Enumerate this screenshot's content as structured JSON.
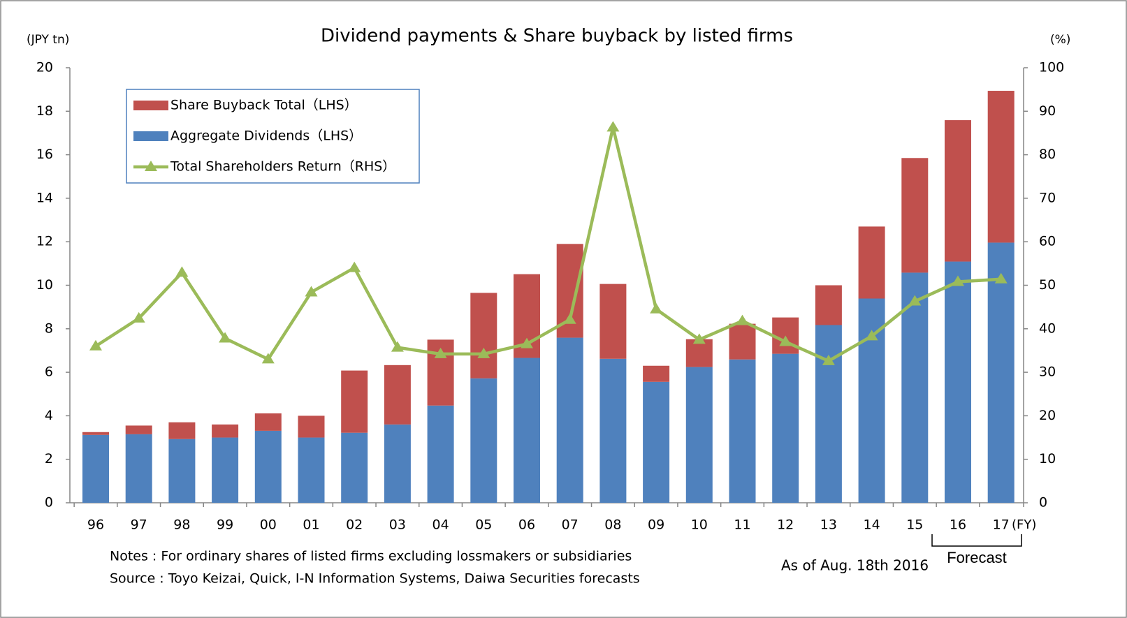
{
  "chart_data": {
    "type": "bar",
    "title": "Dividend payments & Share buyback by listed firms",
    "y_label": "(JPY tn)",
    "y2_label": "(%)",
    "x_unit": "(FY)",
    "notes": [
      "Notes : For ordinary shares of listed firms excluding lossmakers or subsidiaries",
      "Source : Toyo Keizai, Quick, I-N Information Systems, Daiwa Securities forecasts"
    ],
    "as_of": "As of Aug. 18th 2016",
    "forecast_label": "Forecast",
    "categories": [
      "96",
      "97",
      "98",
      "99",
      "00",
      "01",
      "02",
      "03",
      "04",
      "05",
      "06",
      "07",
      "08",
      "09",
      "10",
      "11",
      "12",
      "13",
      "14",
      "15",
      "16",
      "17"
    ],
    "stacked": true,
    "series": [
      {
        "name": "Aggregate Dividends（LHS）",
        "color": "#4f81bd",
        "type": "bar",
        "values": [
          3.12,
          3.15,
          2.93,
          3.0,
          3.31,
          3.0,
          3.22,
          3.6,
          4.47,
          5.72,
          6.66,
          7.59,
          6.62,
          5.56,
          6.24,
          6.59,
          6.85,
          8.17,
          9.39,
          10.58,
          11.09,
          11.96
        ]
      },
      {
        "name": "Share Buyback Total（LHS）",
        "color": "#c0504d",
        "type": "bar",
        "values": [
          0.13,
          0.4,
          0.77,
          0.6,
          0.8,
          1.0,
          2.86,
          2.73,
          3.03,
          3.93,
          3.85,
          4.31,
          3.44,
          0.74,
          1.28,
          1.64,
          1.67,
          1.83,
          3.31,
          5.27,
          6.5,
          6.98
        ]
      },
      {
        "name": "Total Shareholders Return（RHS）",
        "color": "#9bbb59",
        "type": "line",
        "axis": "y2",
        "values": [
          36.0,
          42.4,
          52.9,
          37.8,
          33.0,
          48.4,
          54.0,
          35.7,
          34.2,
          34.2,
          36.5,
          42.1,
          86.3,
          44.5,
          37.5,
          41.8,
          37.0,
          32.6,
          38.3,
          46.3,
          50.8,
          51.4
        ]
      }
    ],
    "ylim": [
      0,
      20
    ],
    "yticks": [
      0,
      2,
      4,
      6,
      8,
      10,
      12,
      14,
      16,
      18,
      20
    ],
    "y2lim": [
      0,
      100
    ],
    "y2ticks": [
      0,
      10,
      20,
      30,
      40,
      50,
      60,
      70,
      80,
      90,
      100
    ],
    "grid": false
  }
}
